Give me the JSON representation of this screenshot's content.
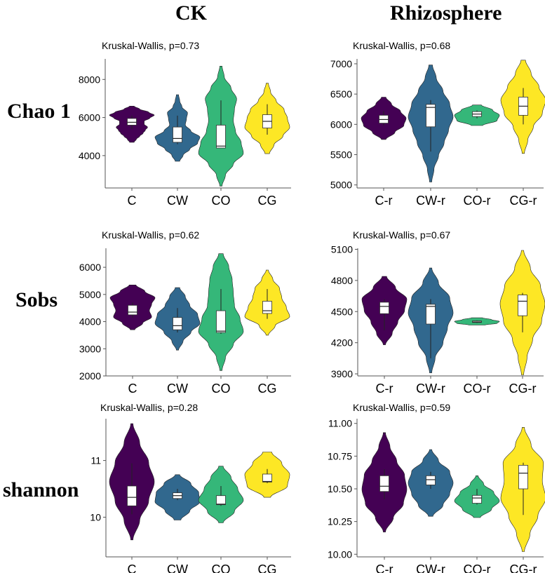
{
  "col_titles": [
    "CK",
    "Rhizosphere"
  ],
  "row_titles": [
    "Chao 1",
    "Sobs",
    "shannon"
  ],
  "colors": {
    "C": "#440154",
    "CW": "#31688E",
    "CO": "#35B779",
    "CG": "#FDE725"
  },
  "chart_data": [
    {
      "type": "violin",
      "panel": "CK-Chao1",
      "annotation": "Kruskal-Wallis, p=0.73",
      "categories": [
        "C",
        "CW",
        "CO",
        "CG"
      ],
      "ylim": [
        2300,
        9300
      ],
      "yticks": [
        4000,
        6000,
        8000
      ],
      "groups": [
        {
          "name": "C",
          "color": "#440154",
          "ymin": 4700,
          "ymax": 6600,
          "shape": [
            0.1,
            0.2,
            0.35,
            0.5,
            0.6,
            0.7,
            0.55,
            0.55,
            0.8,
            1.0,
            0.75,
            0.35,
            0.1
          ],
          "whisker": [
            5400,
            6100
          ],
          "box": [
            5600,
            5950
          ],
          "median": 5750
        },
        {
          "name": "CW",
          "color": "#31688E",
          "ymin": 3700,
          "ymax": 7200,
          "shape": [
            0.1,
            0.25,
            0.55,
            0.9,
            1.0,
            0.6,
            0.35,
            0.4,
            0.45,
            0.2,
            0.1,
            0.05
          ],
          "whisker": [
            4600,
            6100
          ],
          "box": [
            4700,
            5500
          ],
          "median": 4900
        },
        {
          "name": "CO",
          "color": "#35B779",
          "ymin": 2400,
          "ymax": 8700,
          "shape": [
            0.05,
            0.2,
            0.55,
            1.0,
            0.9,
            0.65,
            0.55,
            0.6,
            0.7,
            0.45,
            0.15,
            0.05
          ],
          "whisker": [
            4400,
            6900
          ],
          "box": [
            4400,
            5600
          ],
          "median": 4500
        },
        {
          "name": "CG",
          "color": "#FDE725",
          "ymin": 4100,
          "ymax": 7800,
          "shape": [
            0.1,
            0.3,
            0.7,
            1.0,
            0.9,
            0.75,
            0.4,
            0.15,
            0.05
          ],
          "whisker": [
            5100,
            6700
          ],
          "box": [
            5450,
            6150
          ],
          "median": 5800
        }
      ]
    },
    {
      "type": "violin",
      "panel": "Rhizosphere-Chao1",
      "annotation": "Kruskal-Wallis, p=0.68",
      "categories": [
        "C-r",
        "CW-r",
        "CO-r",
        "CG-r"
      ],
      "ylim": [
        4950,
        7150
      ],
      "yticks": [
        5000,
        5500,
        6000,
        6500,
        7000
      ],
      "groups": [
        {
          "name": "C-r",
          "color": "#440154",
          "ymin": 5750,
          "ymax": 6450,
          "shape": [
            0.1,
            0.5,
            0.9,
            1.0,
            0.75,
            0.35,
            0.1
          ],
          "whisker": [
            5980,
            6220
          ],
          "box": [
            6020,
            6150
          ],
          "median": 6080
        },
        {
          "name": "CW-r",
          "color": "#31688E",
          "ymin": 5050,
          "ymax": 6980,
          "shape": [
            0.05,
            0.15,
            0.35,
            0.6,
            0.8,
            1.0,
            0.85,
            0.55,
            0.25,
            0.08
          ],
          "whisker": [
            5550,
            6400
          ],
          "box": [
            5960,
            6330
          ],
          "median": 6280
        },
        {
          "name": "CO-r",
          "color": "#35B779",
          "ymin": 5980,
          "ymax": 6320,
          "shape": [
            0.25,
            0.9,
            1.0,
            0.7,
            0.2
          ],
          "whisker": [
            6100,
            6230
          ],
          "box": [
            6130,
            6210
          ],
          "median": 6170
        },
        {
          "name": "CG-r",
          "color": "#FDE725",
          "ymin": 5520,
          "ymax": 7060,
          "shape": [
            0.05,
            0.2,
            0.45,
            0.85,
            1.0,
            0.7,
            0.35,
            0.1
          ],
          "whisker": [
            6000,
            6600
          ],
          "box": [
            6150,
            6450
          ],
          "median": 6300
        }
      ]
    },
    {
      "type": "violin",
      "panel": "CK-Sobs",
      "annotation": "Kruskal-Wallis, p=0.62",
      "categories": [
        "C",
        "CW",
        "CO",
        "CG"
      ],
      "ylim": [
        2000,
        6700
      ],
      "yticks": [
        2000,
        3000,
        4000,
        5000,
        6000
      ],
      "groups": [
        {
          "name": "C",
          "color": "#440154",
          "ymin": 3700,
          "ymax": 5350,
          "shape": [
            0.1,
            0.45,
            0.85,
            0.75,
            0.85,
            1.0,
            0.55,
            0.15
          ],
          "whisker": [
            4150,
            4700
          ],
          "box": [
            4250,
            4600
          ],
          "median": 4350
        },
        {
          "name": "CW",
          "color": "#31688E",
          "ymin": 2950,
          "ymax": 5250,
          "shape": [
            0.05,
            0.25,
            0.6,
            1.0,
            0.9,
            0.55,
            0.35,
            0.1
          ],
          "whisker": [
            3600,
            4500
          ],
          "box": [
            3700,
            4150
          ],
          "median": 3850
        },
        {
          "name": "CO",
          "color": "#35B779",
          "ymin": 2200,
          "ymax": 6500,
          "shape": [
            0.05,
            0.2,
            0.55,
            1.0,
            0.85,
            0.6,
            0.55,
            0.5,
            0.35,
            0.1
          ],
          "whisker": [
            3550,
            5200
          ],
          "box": [
            3600,
            4400
          ],
          "median": 3650
        },
        {
          "name": "CG",
          "color": "#FDE725",
          "ymin": 3500,
          "ymax": 5900,
          "shape": [
            0.05,
            0.35,
            1.0,
            0.85,
            0.65,
            0.55,
            0.25,
            0.05
          ],
          "whisker": [
            4100,
            5200
          ],
          "box": [
            4300,
            4750
          ],
          "median": 4400
        }
      ]
    },
    {
      "type": "violin",
      "panel": "Rhizosphere-Sobs",
      "annotation": "Kruskal-Wallis, p=0.67",
      "categories": [
        "C-r",
        "CW-r",
        "CO-r",
        "CG-r"
      ],
      "ylim": [
        3880,
        5110
      ],
      "yticks": [
        3900,
        4200,
        4500,
        4800,
        5100
      ],
      "groups": [
        {
          "name": "C-r",
          "color": "#440154",
          "ymin": 4180,
          "ymax": 4840,
          "shape": [
            0.05,
            0.35,
            0.6,
            0.9,
            1.0,
            0.5,
            0.1
          ],
          "whisker": [
            4320,
            4620
          ],
          "box": [
            4480,
            4590
          ],
          "median": 4550
        },
        {
          "name": "CW-r",
          "color": "#31688E",
          "ymin": 3910,
          "ymax": 4920,
          "shape": [
            0.05,
            0.2,
            0.55,
            0.75,
            1.0,
            0.85,
            0.35,
            0.05
          ],
          "whisker": [
            4050,
            4620
          ],
          "box": [
            4380,
            4570
          ],
          "median": 4550
        },
        {
          "name": "CO-r",
          "color": "#35B779",
          "ymin": 4370,
          "ymax": 4440,
          "shape": [
            0.35,
            0.9,
            1.0,
            0.65,
            0.25
          ],
          "whisker": [
            4390,
            4415
          ],
          "box": [
            4395,
            4410
          ],
          "median": 4400
        },
        {
          "name": "CG-r",
          "color": "#FDE725",
          "ymin": 3890,
          "ymax": 5090,
          "shape": [
            0.05,
            0.2,
            0.45,
            0.85,
            1.0,
            0.8,
            0.35,
            0.05
          ],
          "whisker": [
            4300,
            4680
          ],
          "box": [
            4460,
            4660
          ],
          "median": 4600
        }
      ]
    },
    {
      "type": "violin",
      "panel": "CK-shannon",
      "annotation": "Kruskal-Wallis, p=0.28",
      "categories": [
        "C",
        "CW",
        "CO",
        "CG"
      ],
      "ylim": [
        9.3,
        11.7
      ],
      "yticks": [
        10,
        11
      ],
      "groups": [
        {
          "name": "C",
          "color": "#440154",
          "ymin": 9.6,
          "ymax": 11.65,
          "shape": [
            0.05,
            0.35,
            0.75,
            1.0,
            0.75,
            0.35,
            0.05
          ],
          "whisker": [
            10.05,
            10.95
          ],
          "box": [
            10.2,
            10.55
          ],
          "median": 10.35
        },
        {
          "name": "CW",
          "color": "#31688E",
          "ymin": 9.95,
          "ymax": 10.75,
          "shape": [
            0.15,
            0.55,
            1.0,
            0.95,
            0.6,
            0.1
          ],
          "whisker": [
            10.3,
            10.5
          ],
          "box": [
            10.33,
            10.43
          ],
          "median": 10.38
        },
        {
          "name": "CO",
          "color": "#35B779",
          "ymin": 9.9,
          "ymax": 10.9,
          "shape": [
            0.1,
            0.6,
            1.0,
            0.75,
            0.45,
            0.1
          ],
          "whisker": [
            10.2,
            10.55
          ],
          "box": [
            10.22,
            10.38
          ],
          "median": 10.23
        },
        {
          "name": "CG",
          "color": "#FDE725",
          "ymin": 10.35,
          "ymax": 11.15,
          "shape": [
            0.15,
            0.9,
            1.0,
            0.65,
            0.2
          ],
          "whisker": [
            10.6,
            10.85
          ],
          "box": [
            10.62,
            10.76
          ],
          "median": 10.63
        }
      ]
    },
    {
      "type": "violin",
      "panel": "Rhizosphere-shannon",
      "annotation": "Kruskal-Wallis, p=0.59",
      "categories": [
        "C-r",
        "CW-r",
        "CO-r",
        "CG-r"
      ],
      "ylim": [
        9.98,
        11.02
      ],
      "yticks": [
        10.0,
        10.25,
        10.5,
        10.75,
        11.0
      ],
      "tick_labels": [
        "10.00",
        "10.25",
        "10.50",
        "10.75",
        "11.00"
      ],
      "groups": [
        {
          "name": "C-r",
          "color": "#440154",
          "ymin": 10.17,
          "ymax": 10.93,
          "shape": [
            0.05,
            0.4,
            0.85,
            1.0,
            0.9,
            0.55,
            0.25,
            0.05
          ],
          "whisker": [
            10.42,
            10.65
          ],
          "box": [
            10.48,
            10.6
          ],
          "median": 10.52
        },
        {
          "name": "CW-r",
          "color": "#31688E",
          "ymin": 10.29,
          "ymax": 10.8,
          "shape": [
            0.1,
            0.55,
            0.85,
            1.0,
            0.85,
            0.35,
            0.05
          ],
          "whisker": [
            10.5,
            10.63
          ],
          "box": [
            10.53,
            10.6
          ],
          "median": 10.57
        },
        {
          "name": "CO-r",
          "color": "#35B779",
          "ymin": 10.28,
          "ymax": 10.6,
          "shape": [
            0.15,
            0.65,
            1.0,
            0.75,
            0.3,
            0.05
          ],
          "whisker": [
            10.38,
            10.5
          ],
          "box": [
            10.39,
            10.45
          ],
          "median": 10.43
        },
        {
          "name": "CG-r",
          "color": "#FDE725",
          "ymin": 10.02,
          "ymax": 10.97,
          "shape": [
            0.05,
            0.3,
            0.65,
            1.0,
            0.85,
            0.9,
            0.35,
            0.05
          ],
          "whisker": [
            10.3,
            10.7
          ],
          "box": [
            10.5,
            10.68
          ],
          "median": 10.62
        }
      ]
    }
  ]
}
